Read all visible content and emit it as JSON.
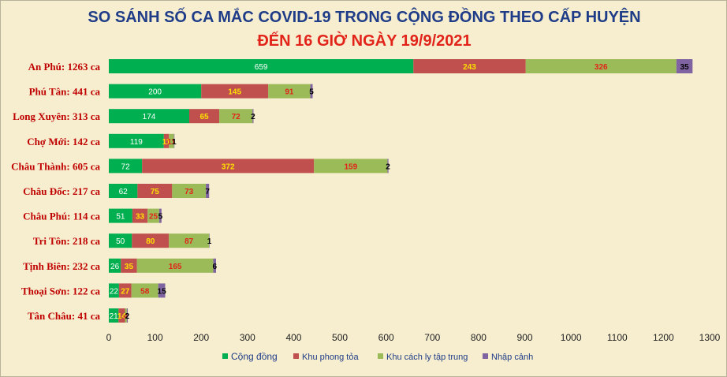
{
  "chart_data": {
    "type": "bar",
    "orientation": "horizontal",
    "stacked": true,
    "title": "SO SÁNH SỐ CA MẮC COVID-19 TRONG CỘNG ĐỒNG THEO CẤP HUYỆN",
    "subtitle": "ĐẾN 16 GIỜ NGÀY 19/9/2021",
    "categories": [
      "An Phú: 1263 ca",
      "Phú Tân: 441 ca",
      "Long Xuyên: 313 ca",
      "Chợ Mới: 142 ca",
      "Châu Thành: 605 ca",
      "Châu Đốc: 217 ca",
      "Châu Phú: 114 ca",
      "Tri Tôn: 218 ca",
      "Tịnh Biên: 232 ca",
      "Thoại  Sơn: 122 ca",
      "Tân Châu: 41 ca"
    ],
    "series": [
      {
        "name": "Cộng đồng",
        "color": "#00b050",
        "label_color": "#ffffff",
        "values": [
          659,
          200,
          174,
          119,
          72,
          62,
          51,
          50,
          26,
          22,
          21
        ]
      },
      {
        "name": "Khu phong tỏa",
        "color": "#c0504d",
        "label_color": "#ffe000",
        "values": [
          243,
          145,
          65,
          11,
          372,
          75,
          33,
          80,
          35,
          27,
          14
        ]
      },
      {
        "name": "Khu cách ly tập trung",
        "color": "#9bbb59",
        "label_color": "#e2231a",
        "values": [
          326,
          91,
          72,
          11,
          159,
          73,
          25,
          87,
          165,
          58,
          4
        ]
      },
      {
        "name": "Nhập cảnh",
        "color": "#8064a2",
        "label_color": "#000000",
        "values": [
          35,
          5,
          2,
          1,
          2,
          7,
          5,
          1,
          6,
          15,
          2
        ]
      }
    ],
    "xlim": [
      0,
      1300
    ],
    "xticks": [
      "0",
      "100",
      "200",
      "300",
      "400",
      "500",
      "600",
      "700",
      "800",
      "900",
      "1000",
      "1100",
      "1200",
      "1300"
    ],
    "grid": false,
    "legend": "bottom",
    "category_label_color": "#c00000"
  }
}
